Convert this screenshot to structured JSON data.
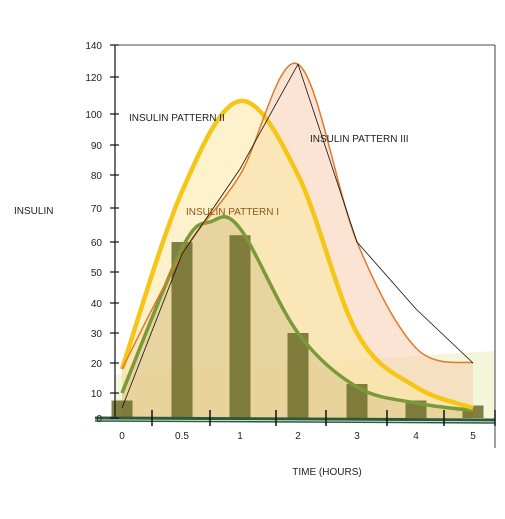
{
  "chart_data": {
    "type": "bar",
    "title": "",
    "xlabel": "TIME (HOURS)",
    "ylabel": "INSULIN",
    "x_ticks": [
      "0",
      "0.5",
      "1",
      "2",
      "3",
      "4",
      "5"
    ],
    "y_ticks": [
      "0",
      "10",
      "20",
      "30",
      "40",
      "50",
      "60",
      "70",
      "80",
      "90",
      "100",
      "120",
      "140"
    ],
    "bars": {
      "x": [
        "0",
        "0.5",
        "1",
        "2",
        "3",
        "4",
        "5"
      ],
      "values": [
        7,
        60,
        62,
        30,
        13,
        7,
        5
      ],
      "color": "#6b6b2a"
    },
    "series": [
      {
        "name": "INSULIN PATTERN I",
        "color": "#7a9a3a",
        "points": [
          [
            0,
            10
          ],
          [
            0.5,
            58
          ],
          [
            0.75,
            66
          ],
          [
            1,
            64
          ],
          [
            2,
            30
          ],
          [
            3,
            12
          ],
          [
            4,
            6
          ],
          [
            5,
            3
          ]
        ]
      },
      {
        "name": "INSULIN PATTERN II",
        "color": "#f5c518",
        "points": [
          [
            0,
            18
          ],
          [
            0.5,
            75
          ],
          [
            1,
            107
          ],
          [
            2,
            80
          ],
          [
            3,
            30
          ],
          [
            4,
            12
          ],
          [
            5,
            4
          ]
        ]
      },
      {
        "name": "INSULIN PATTERN III",
        "color": "#e07a2a",
        "points": [
          [
            0,
            18
          ],
          [
            0.5,
            56
          ],
          [
            1,
            80
          ],
          [
            2,
            128
          ],
          [
            3,
            60
          ],
          [
            4,
            25
          ],
          [
            5,
            20
          ]
        ]
      }
    ],
    "annotations": [
      "INSULIN PATTERN I",
      "INSULIN PATTERN II",
      "INSULIN PATTERN III"
    ],
    "grid": false
  }
}
